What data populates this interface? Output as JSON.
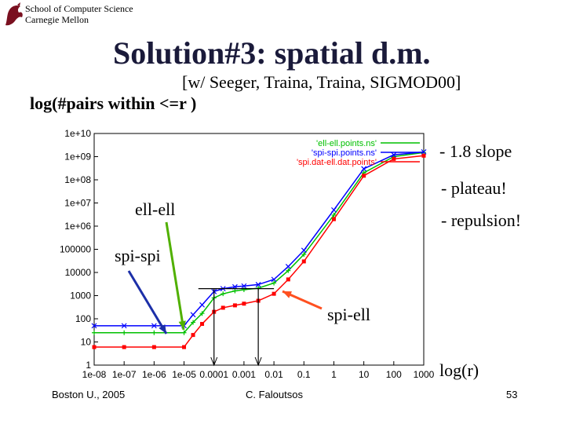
{
  "header": {
    "line1": "School of Computer Science",
    "line2": "Carnegie Mellon"
  },
  "title": "Solution#3: spatial d.m.",
  "subtitle": "[w/ Seeger, Traina, Traina, SIGMOD00]",
  "ylabel": "log(#pairs within <=r )",
  "xlabel": "log(r)",
  "annotations": {
    "slope": "- 1.8 slope",
    "plateau": "- plateau!",
    "repulsion": "- repulsion!",
    "ell_ell": "ell-ell",
    "spi_spi": "spi-spi",
    "spi_ell": "spi-ell"
  },
  "footer": {
    "left": "Boston U., 2005",
    "center": "C. Faloutsos",
    "page": "53"
  },
  "colors": {
    "ell": "#00c000",
    "spi": "#0000ff",
    "spi_ell": "#ff0000",
    "arrow_green": "#50b000",
    "arrow_blue": "#1c2fa8",
    "arrow_red": "#ff5020"
  },
  "chart_data": {
    "type": "line",
    "x_scale": "log",
    "y_scale": "log",
    "xlim": [
      1e-08,
      1000
    ],
    "ylim": [
      1,
      10000000000.0
    ],
    "x_ticks": [
      "1e-08",
      "1e-07",
      "1e-06",
      "1e-05",
      "0.0001",
      "0.001",
      "0.01",
      "0.1",
      "1",
      "10",
      "100",
      "1000"
    ],
    "y_ticks": [
      "1",
      "10",
      "100",
      "1000",
      "10000",
      "100000",
      "1e+06",
      "1e+07",
      "1e+08",
      "1e+09",
      "1e+10"
    ],
    "legend_position": "top-right",
    "series": [
      {
        "name": "'ell-ell.points.ns'",
        "color": "#00c000",
        "x": [
          1e-08,
          1e-07,
          1e-06,
          1e-05,
          2e-05,
          4e-05,
          0.0001,
          0.0002,
          0.0005,
          0.001,
          0.003,
          0.01,
          0.03,
          0.1,
          1,
          10,
          100,
          1000
        ],
        "y": [
          25,
          25,
          25,
          25,
          70,
          170,
          800,
          1200,
          1600,
          1800,
          2100,
          3500,
          12000,
          60000,
          3000000.0,
          200000000.0,
          1000000000.0,
          1500000000.0
        ]
      },
      {
        "name": "'spi-spi.points.ns'",
        "color": "#0000ff",
        "x": [
          1e-08,
          1e-07,
          1e-06,
          1e-05,
          2e-05,
          4e-05,
          0.0001,
          0.0002,
          0.0005,
          0.001,
          0.003,
          0.01,
          0.03,
          0.1,
          1,
          10,
          100,
          1000
        ],
        "y": [
          50,
          50,
          50,
          50,
          150,
          400,
          1500,
          2000,
          2400,
          2600,
          3000,
          5000,
          18000,
          90000,
          5000000.0,
          300000000.0,
          1200000000.0,
          1600000000.0
        ]
      },
      {
        "name": "'spi.dat-ell.dat.points'",
        "color": "#ff0000",
        "x": [
          1e-08,
          1e-07,
          1e-06,
          1e-05,
          2e-05,
          4e-05,
          0.0001,
          0.0002,
          0.0005,
          0.001,
          0.003,
          0.01,
          0.03,
          0.1,
          1,
          10,
          100,
          1000
        ],
        "y": [
          6,
          6,
          6,
          6,
          20,
          60,
          200,
          300,
          380,
          450,
          600,
          1200,
          5000,
          30000,
          2000000.0,
          150000000.0,
          800000000.0,
          1100000000.0
        ]
      }
    ]
  }
}
